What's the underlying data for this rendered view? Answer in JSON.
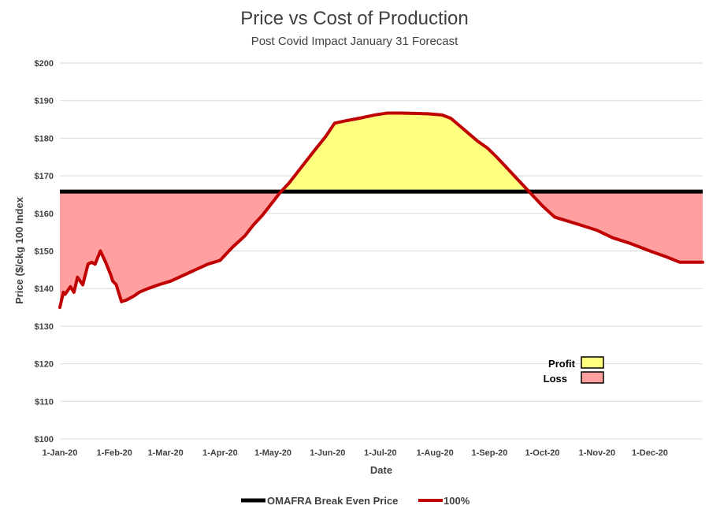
{
  "chart_data": {
    "type": "area",
    "title": "Price vs Cost of Production",
    "subtitle": "Post Covid Impact January 31 Forecast",
    "xlabel": "Date",
    "ylabel": "Price ($/ckg 100 Index",
    "xlim": [
      "2020-01-01",
      "2020-12-31"
    ],
    "ylim": [
      100,
      200
    ],
    "y_ticks": [
      100,
      110,
      120,
      130,
      140,
      150,
      160,
      170,
      180,
      190,
      200
    ],
    "y_tick_labels": [
      "$100",
      "$110",
      "$120",
      "$130",
      "$140",
      "$150",
      "$160",
      "$170",
      "$180",
      "$190",
      "$200"
    ],
    "x_ticks": [
      "2020-01-01",
      "2020-02-01",
      "2020-03-01",
      "2020-04-01",
      "2020-05-01",
      "2020-06-01",
      "2020-07-01",
      "2020-08-01",
      "2020-09-01",
      "2020-10-01",
      "2020-11-01",
      "2020-12-01"
    ],
    "x_tick_labels": [
      "1-Jan-20",
      "1-Feb-20",
      "1-Mar-20",
      "1-Apr-20",
      "1-May-20",
      "1-Jun-20",
      "1-Jul-20",
      "1-Aug-20",
      "1-Sep-20",
      "1-Oct-20",
      "1-Nov-20",
      "1-Dec-20"
    ],
    "grid": "horizontal",
    "legend_position": "bottom",
    "series": [
      {
        "name": "OMAFRA Break Even Price",
        "color": "#000000",
        "x": [
          "2020-01-01",
          "2020-12-31"
        ],
        "values": [
          165.8,
          165.8
        ]
      },
      {
        "name": "100%",
        "color": "#c00000",
        "x": [
          "2020-01-01",
          "2020-01-03",
          "2020-01-04",
          "2020-01-07",
          "2020-01-09",
          "2020-01-11",
          "2020-01-14",
          "2020-01-17",
          "2020-01-19",
          "2020-01-21",
          "2020-01-24",
          "2020-01-27",
          "2020-01-30",
          "2020-01-31",
          "2020-02-02",
          "2020-02-05",
          "2020-02-08",
          "2020-02-12",
          "2020-02-15",
          "2020-02-20",
          "2020-02-26",
          "2020-03-04",
          "2020-03-11",
          "2020-03-18",
          "2020-03-25",
          "2020-04-01",
          "2020-04-08",
          "2020-04-15",
          "2020-04-20",
          "2020-04-25",
          "2020-04-30",
          "2020-05-05",
          "2020-05-10",
          "2020-05-15",
          "2020-05-20",
          "2020-05-25",
          "2020-05-31",
          "2020-06-05",
          "2020-06-12",
          "2020-06-20",
          "2020-06-28",
          "2020-07-05",
          "2020-07-12",
          "2020-07-20",
          "2020-07-28",
          "2020-08-05",
          "2020-08-10",
          "2020-08-15",
          "2020-08-20",
          "2020-08-25",
          "2020-08-31",
          "2020-09-05",
          "2020-09-10",
          "2020-09-15",
          "2020-09-20",
          "2020-09-25",
          "2020-10-01",
          "2020-10-08",
          "2020-10-15",
          "2020-10-22",
          "2020-11-01",
          "2020-11-10",
          "2020-11-20",
          "2020-12-01",
          "2020-12-10",
          "2020-12-18",
          "2020-12-31"
        ],
        "values": [
          135,
          139,
          138.5,
          140.5,
          139,
          143,
          141,
          146.5,
          147,
          146.5,
          150,
          147,
          143.5,
          142,
          141,
          136.5,
          137,
          138,
          139,
          140,
          141,
          142,
          143.5,
          145,
          146.5,
          147.5,
          151,
          154,
          157,
          159.5,
          162.5,
          165.5,
          168,
          171,
          174,
          177,
          180.5,
          184,
          184.7,
          185.4,
          186.2,
          186.7,
          186.7,
          186.6,
          186.5,
          186.2,
          185.3,
          183.3,
          181.3,
          179.3,
          177.3,
          175,
          172.5,
          170,
          167.5,
          165,
          162,
          159,
          158,
          157,
          155.5,
          153.5,
          152,
          150,
          148.5,
          147,
          147
        ]
      }
    ],
    "annotations": [
      {
        "label": "Profit",
        "color": "#ffff80"
      },
      {
        "label": "Loss",
        "color": "#ff9f9f"
      }
    ]
  }
}
